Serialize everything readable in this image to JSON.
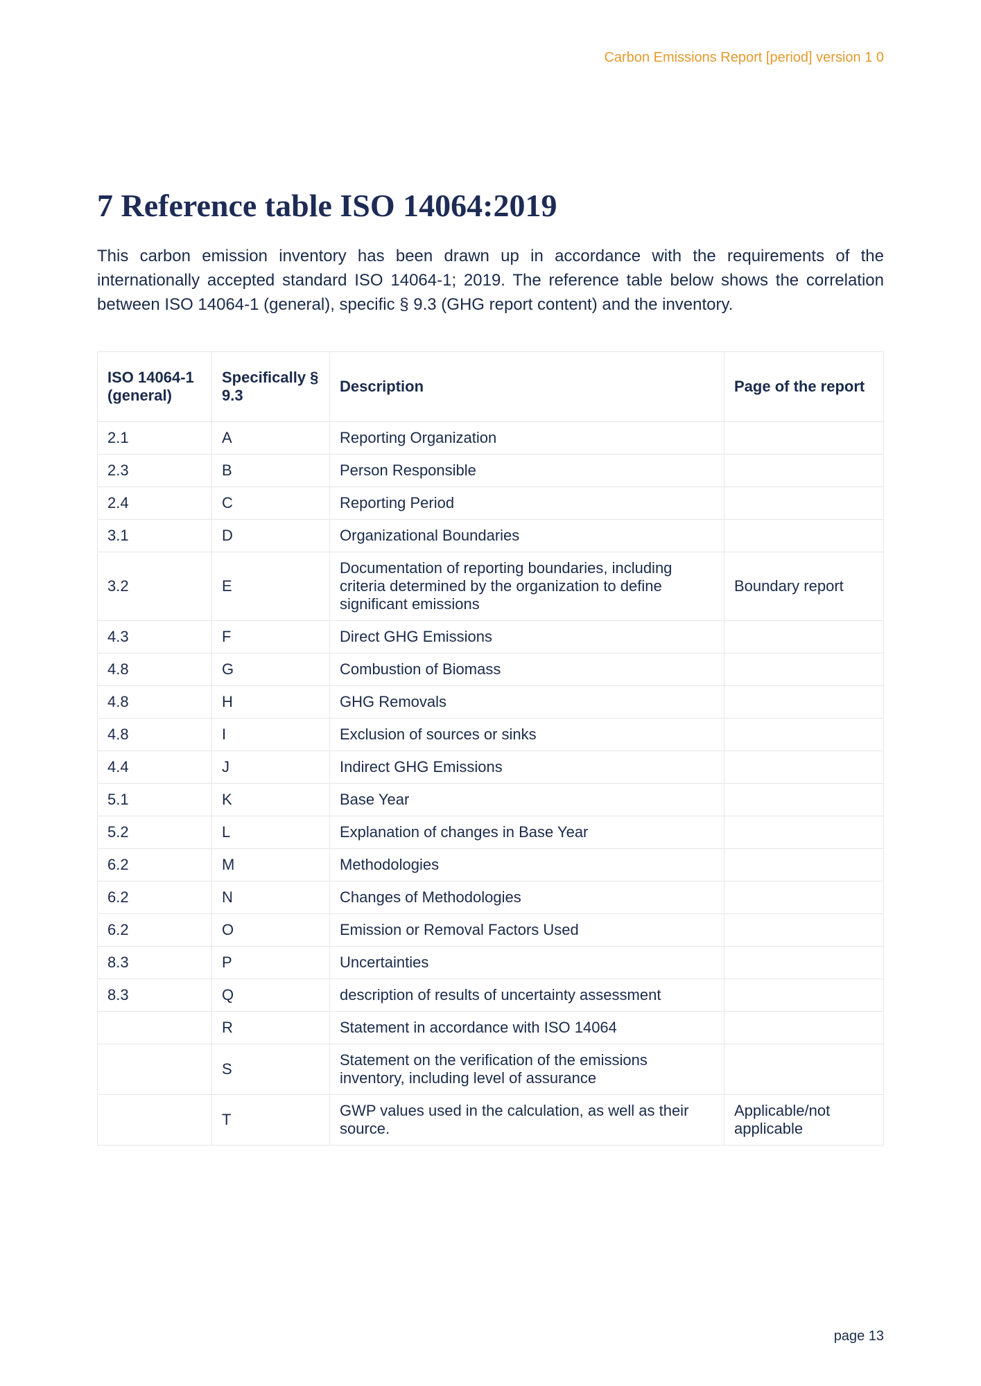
{
  "header": {
    "top_right": "Carbon Emissions Report [period] version 1 0"
  },
  "section": {
    "title": "7 Reference table ISO 14064:2019",
    "intro": "This carbon emission inventory has been drawn up in accordance with the requirements of the internationally accepted standard ISO 14064-1; 2019. The reference table below shows the correlation between ISO 14064-1 (general), specific § 9.3 (GHG report content) and the inventory."
  },
  "table": {
    "columns": [
      "ISO 14064-1 (general)",
      "Specifically § 9.3",
      "Description",
      "Page of the report"
    ],
    "rows": [
      [
        "2.1",
        "A",
        "Reporting Organization",
        ""
      ],
      [
        "2.3",
        "B",
        "Person Responsible",
        ""
      ],
      [
        "2.4",
        "C",
        "Reporting Period",
        ""
      ],
      [
        "3.1",
        "D",
        "Organizational Boundaries",
        ""
      ],
      [
        "3.2",
        "E",
        "Documentation of reporting boundaries, including criteria determined by the organization to define significant emissions",
        "Boundary report"
      ],
      [
        "4.3",
        "F",
        "Direct GHG Emissions",
        ""
      ],
      [
        "4.8",
        "G",
        "Combustion of Biomass",
        ""
      ],
      [
        "4.8",
        "H",
        "GHG Removals",
        ""
      ],
      [
        "4.8",
        "I",
        "Exclusion of sources or sinks",
        ""
      ],
      [
        "4.4",
        "J",
        "Indirect GHG Emissions",
        ""
      ],
      [
        "5.1",
        "K",
        "Base Year",
        ""
      ],
      [
        "5.2",
        "L",
        "Explanation of changes in Base Year",
        ""
      ],
      [
        "6.2",
        "M",
        "Methodologies",
        ""
      ],
      [
        "6.2",
        "N",
        "Changes of Methodologies",
        ""
      ],
      [
        "6.2",
        "O",
        "Emission or Removal Factors Used",
        ""
      ],
      [
        "8.3",
        "P",
        "Uncertainties",
        ""
      ],
      [
        "8.3",
        "Q",
        "description of results of uncertainty assessment",
        ""
      ],
      [
        "",
        "R",
        "Statement in accordance with ISO 14064",
        ""
      ],
      [
        "",
        "S",
        "Statement on the verification of the emissions inventory, including level of assurance",
        ""
      ],
      [
        "",
        "T",
        "GWP values used in the calculation, as well as their source.",
        "Applicable/not applicable"
      ]
    ]
  },
  "footer": {
    "page_label": "page 13"
  },
  "colors": {
    "accent": "#e69a2e",
    "heading": "#1d2b55",
    "text": "#1a2a4a",
    "border": "#e6e6e6",
    "background": "#ffffff"
  }
}
